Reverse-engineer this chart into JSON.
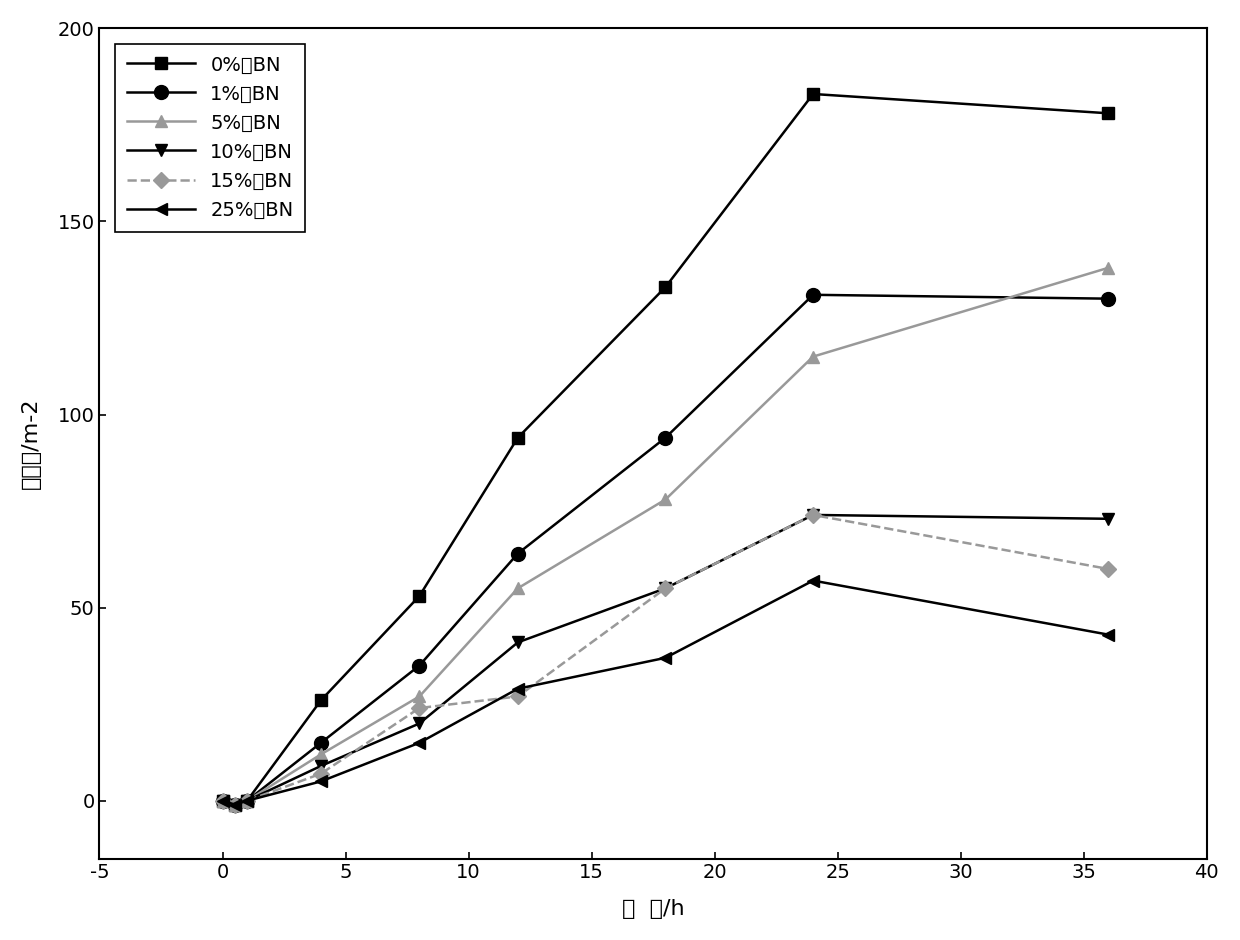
{
  "series": [
    {
      "label": "0%的BN",
      "x": [
        0,
        0.5,
        1,
        4,
        8,
        12,
        18,
        24,
        36
      ],
      "y": [
        0,
        -1,
        0,
        26,
        53,
        94,
        133,
        183,
        178
      ],
      "color": "#000000",
      "marker": "s",
      "linestyle": "-",
      "markersize": 9,
      "legend_gray": false
    },
    {
      "label": "1%的BN",
      "x": [
        0,
        0.5,
        1,
        4,
        8,
        12,
        18,
        24,
        36
      ],
      "y": [
        0,
        -1,
        0,
        15,
        35,
        64,
        94,
        131,
        130
      ],
      "color": "#000000",
      "marker": "o",
      "linestyle": "-",
      "markersize": 10,
      "legend_gray": false
    },
    {
      "label": "5%的BN",
      "x": [
        0,
        0.5,
        1,
        4,
        8,
        12,
        18,
        24,
        36
      ],
      "y": [
        0,
        -1,
        0,
        12,
        27,
        55,
        78,
        115,
        138
      ],
      "color": "#999999",
      "marker": "^",
      "linestyle": "-",
      "markersize": 9,
      "legend_gray": true
    },
    {
      "label": "10%的BN",
      "x": [
        0,
        0.5,
        1,
        4,
        8,
        12,
        18,
        24,
        36
      ],
      "y": [
        0,
        -1,
        0,
        9,
        20,
        41,
        55,
        74,
        73
      ],
      "color": "#000000",
      "marker": "v",
      "linestyle": "-",
      "markersize": 9,
      "legend_gray": false
    },
    {
      "label": "15%的BN",
      "x": [
        0,
        0.5,
        1,
        4,
        8,
        12,
        18,
        24,
        36
      ],
      "y": [
        0,
        -1,
        0,
        7,
        24,
        27,
        55,
        74,
        60
      ],
      "color": "#999999",
      "marker": "D",
      "linestyle": "--",
      "markersize": 8,
      "legend_gray": true
    },
    {
      "label": "25%的BN",
      "x": [
        0,
        0.5,
        1,
        4,
        8,
        12,
        18,
        24,
        36
      ],
      "y": [
        0,
        -1,
        0,
        5,
        15,
        29,
        37,
        57,
        43
      ],
      "color": "#000000",
      "marker": "<",
      "linestyle": "-",
      "markersize": 9,
      "legend_gray": false
    }
  ],
  "xlabel": "时  间/h",
  "ylabel": "吸油率/m-2",
  "xlim": [
    -5,
    40
  ],
  "ylim": [
    -15,
    200
  ],
  "xticks": [
    -5,
    0,
    5,
    10,
    15,
    20,
    25,
    30,
    35,
    40
  ],
  "xtick_labels": [
    "-5",
    "0",
    "5",
    "10",
    "15",
    "20",
    "25",
    "30",
    "35",
    "40"
  ],
  "yticks": [
    0,
    50,
    100,
    150,
    200
  ],
  "ytick_labels": [
    "0",
    "50",
    "100",
    "150",
    "200"
  ],
  "figsize": [
    12.4,
    9.4
  ],
  "dpi": 100,
  "background_color": "#ffffff",
  "legend_fontsize": 14,
  "axis_fontsize": 16,
  "tick_fontsize": 14
}
